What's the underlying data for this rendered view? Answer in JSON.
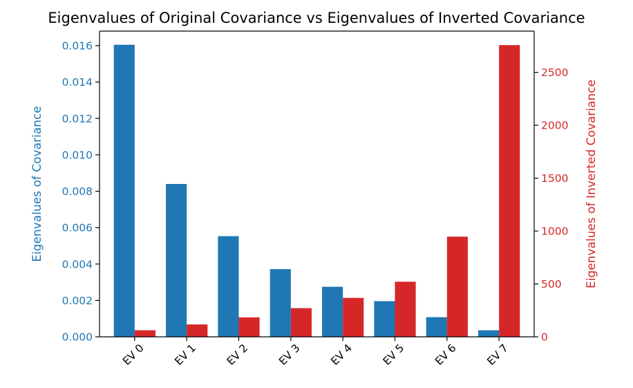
{
  "chart_data": {
    "type": "bar",
    "title": "Eigenvalues of Original Covariance vs Eigenvalues of Inverted Covariance",
    "categories": [
      "EV 0",
      "EV 1",
      "EV 2",
      "EV 3",
      "EV 4",
      "EV 5",
      "EV 6",
      "EV 7"
    ],
    "y_left": {
      "label": "Eigenvalues of Covariance",
      "ylim": [
        0,
        0.0168
      ],
      "ticks": [
        0,
        0.002,
        0.004,
        0.006,
        0.008,
        0.01,
        0.012,
        0.014,
        0.016
      ],
      "tick_labels": [
        "0.000",
        "0.002",
        "0.004",
        "0.006",
        "0.008",
        "0.010",
        "0.012",
        "0.014",
        "0.016"
      ],
      "color": "#1f77b4"
    },
    "y_right": {
      "label": "Eigenvalues of Inverted Covariance",
      "ylim": [
        0,
        2890
      ],
      "ticks": [
        0,
        500,
        1000,
        1500,
        2000,
        2500
      ],
      "tick_labels": [
        "0",
        "500",
        "1000",
        "1500",
        "2000",
        "2500"
      ],
      "color": "#d62728"
    },
    "series": [
      {
        "axis": "left",
        "color": "#1f77b4",
        "values": [
          0.01605,
          0.0084,
          0.00553,
          0.00372,
          0.00275,
          0.00196,
          0.00108,
          0.00036
        ]
      },
      {
        "axis": "right",
        "color": "#d62728",
        "values": [
          62,
          117,
          184,
          271,
          368,
          521,
          947,
          2758
        ]
      }
    ],
    "grid": false
  }
}
